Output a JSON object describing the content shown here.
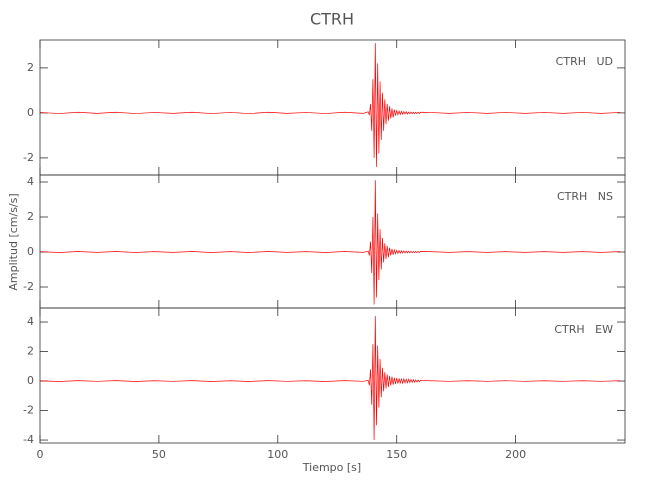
{
  "chart_data": [
    {
      "type": "line",
      "title": "CTRH",
      "label": "CTRH   UD",
      "color": "#ff0000",
      "xlim": [
        0,
        246
      ],
      "ylim": [
        -2.76,
        3.24
      ],
      "yticks": [
        -2,
        0,
        2
      ],
      "x": [
        0,
        8,
        16,
        24,
        32,
        40,
        48,
        56,
        64,
        72,
        80,
        88,
        96,
        104,
        112,
        120,
        128,
        136,
        138,
        138.5,
        139,
        139.5,
        140,
        140.5,
        141,
        141.5,
        142,
        142.5,
        143,
        143.5,
        144,
        144.5,
        145,
        145.5,
        146,
        146.5,
        147,
        147.5,
        148,
        148.5,
        149,
        149.5,
        150,
        150.5,
        151,
        151.5,
        152,
        152.5,
        153,
        153.5,
        154,
        154.5,
        155,
        155.5,
        156,
        156.5,
        157,
        157.5,
        158,
        158.5,
        159,
        159.5,
        160,
        164,
        172,
        180,
        188,
        196,
        204,
        212,
        220,
        228,
        236,
        244
      ],
      "values": [
        0.02,
        -0.03,
        0.03,
        -0.02,
        0.03,
        -0.03,
        0.02,
        -0.02,
        0.03,
        -0.03,
        0.02,
        -0.03,
        0.03,
        -0.02,
        0.02,
        -0.03,
        0.03,
        -0.02,
        0.05,
        -0.1,
        0.4,
        -0.8,
        1.5,
        -2.0,
        3.1,
        -2.4,
        2.2,
        -1.8,
        1.4,
        -1.2,
        0.9,
        -0.8,
        0.6,
        -0.5,
        0.4,
        -0.35,
        0.3,
        -0.25,
        0.2,
        -0.2,
        0.15,
        -0.12,
        0.1,
        -0.08,
        0.08,
        -0.07,
        0.07,
        -0.06,
        0.06,
        -0.05,
        0.05,
        -0.05,
        0.04,
        -0.04,
        0.04,
        -0.04,
        0.03,
        -0.03,
        0.03,
        -0.03,
        0.03,
        -0.03,
        0.03,
        0.02,
        -0.02,
        0.02,
        -0.02,
        0.02,
        -0.02,
        0.02,
        -0.02,
        0.02,
        -0.02,
        0.02
      ]
    },
    {
      "type": "line",
      "ylabel": "Amplitud [cm/s/s]",
      "label": "CTRH   NS",
      "color": "#ff0000",
      "xlim": [
        0,
        246
      ],
      "ylim": [
        -3.2,
        4.4
      ],
      "yticks": [
        -2,
        0,
        2,
        4
      ],
      "x": [
        0,
        8,
        16,
        24,
        32,
        40,
        48,
        56,
        64,
        72,
        80,
        88,
        96,
        104,
        112,
        120,
        128,
        136,
        138,
        138.5,
        139,
        139.5,
        140,
        140.5,
        141,
        141.5,
        142,
        142.5,
        143,
        143.5,
        144,
        144.5,
        145,
        145.5,
        146,
        146.5,
        147,
        147.5,
        148,
        148.5,
        149,
        149.5,
        150,
        150.5,
        151,
        151.5,
        152,
        152.5,
        153,
        153.5,
        154,
        154.5,
        155,
        155.5,
        156,
        156.5,
        157,
        157.5,
        158,
        158.5,
        159,
        159.5,
        160,
        164,
        172,
        180,
        188,
        196,
        204,
        212,
        220,
        228,
        236,
        244
      ],
      "values": [
        0.02,
        -0.03,
        0.03,
        -0.02,
        0.03,
        -0.03,
        0.02,
        -0.02,
        0.03,
        -0.03,
        0.02,
        -0.03,
        0.03,
        -0.02,
        0.02,
        -0.03,
        0.03,
        -0.02,
        0.05,
        -0.2,
        0.6,
        -1.2,
        2.0,
        -3.0,
        4.1,
        -2.6,
        2.2,
        -1.6,
        1.3,
        -1.0,
        0.8,
        -0.6,
        0.5,
        -0.4,
        0.35,
        -0.3,
        0.25,
        -0.2,
        0.18,
        -0.15,
        0.12,
        -0.1,
        0.1,
        -0.08,
        0.08,
        -0.07,
        0.07,
        -0.06,
        0.06,
        -0.05,
        0.05,
        -0.05,
        0.04,
        -0.04,
        0.04,
        -0.04,
        0.03,
        -0.03,
        0.03,
        -0.03,
        0.03,
        -0.03,
        0.03,
        0.02,
        -0.02,
        0.02,
        -0.02,
        0.02,
        -0.02,
        0.02,
        -0.02,
        0.02,
        -0.02,
        0.02
      ]
    },
    {
      "type": "line",
      "xlabel": "Tiempo [s]",
      "label": "CTRH   EW",
      "color": "#ff0000",
      "xlim": [
        0,
        246
      ],
      "xticks": [
        0,
        50,
        100,
        150,
        200
      ],
      "ylim": [
        -4.2,
        4.95
      ],
      "yticks": [
        -4,
        -2,
        0,
        2,
        4
      ],
      "x": [
        0,
        8,
        16,
        24,
        32,
        40,
        48,
        56,
        64,
        72,
        80,
        88,
        96,
        104,
        112,
        120,
        128,
        136,
        138,
        138.5,
        139,
        139.5,
        140,
        140.5,
        141,
        141.5,
        142,
        142.5,
        143,
        143.5,
        144,
        144.5,
        145,
        145.5,
        146,
        146.5,
        147,
        147.5,
        148,
        148.5,
        149,
        149.5,
        150,
        150.5,
        151,
        151.5,
        152,
        152.5,
        153,
        153.5,
        154,
        154.5,
        155,
        155.5,
        156,
        156.5,
        157,
        157.5,
        158,
        158.5,
        159,
        159.5,
        160,
        164,
        172,
        180,
        188,
        196,
        204,
        212,
        220,
        228,
        236,
        244
      ],
      "values": [
        0.02,
        -0.03,
        0.03,
        -0.02,
        0.03,
        -0.03,
        0.02,
        -0.02,
        0.03,
        -0.03,
        0.02,
        -0.03,
        0.03,
        -0.02,
        0.02,
        -0.03,
        0.03,
        -0.02,
        0.05,
        -0.3,
        0.8,
        -1.6,
        2.5,
        -4.0,
        4.4,
        -3.0,
        2.4,
        -1.8,
        1.5,
        -1.1,
        0.9,
        -0.7,
        0.6,
        -0.5,
        0.45,
        -0.4,
        0.35,
        -0.3,
        0.3,
        -0.25,
        0.22,
        -0.2,
        0.2,
        -0.18,
        0.18,
        -0.16,
        0.16,
        -0.15,
        0.15,
        -0.13,
        0.13,
        -0.12,
        0.12,
        -0.1,
        0.1,
        -0.09,
        0.09,
        -0.08,
        0.08,
        -0.06,
        0.06,
        -0.05,
        0.05,
        0.02,
        -0.02,
        0.02,
        -0.02,
        0.02,
        -0.02,
        0.02,
        -0.02,
        0.02,
        -0.02,
        0.02
      ]
    }
  ]
}
